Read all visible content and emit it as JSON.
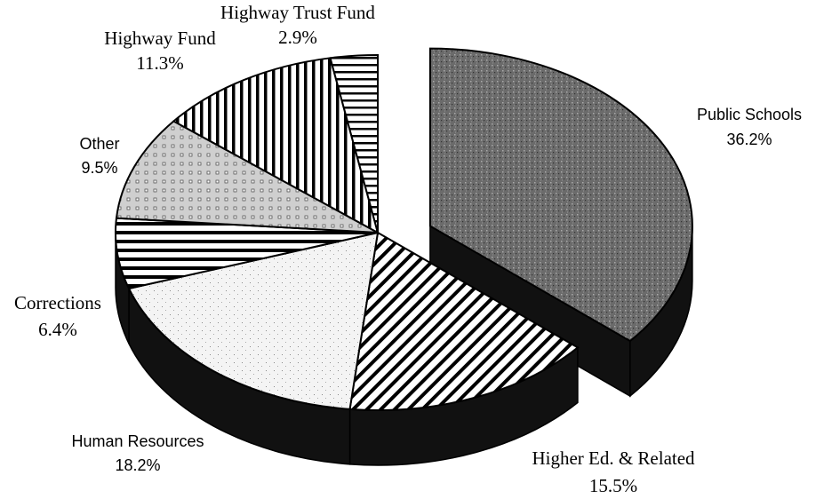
{
  "chart_data": {
    "type": "pie",
    "categories": [
      "Public Schools",
      "Higher Ed. & Related",
      "Human Resources",
      "Corrections",
      "Other",
      "Highway Fund",
      "Highway Trust Fund"
    ],
    "values": [
      36.2,
      15.5,
      18.2,
      6.4,
      9.5,
      11.3,
      2.9
    ],
    "value_labels": [
      "36.2%",
      "15.5%",
      "18.2%",
      "6.4%",
      "9.5%",
      "11.3%",
      "2.9%"
    ],
    "colors": [
      "#6b6b6b",
      "#ffffff",
      "#f4f4f4",
      "#ffffff",
      "#cfcfcf",
      "#ffffff",
      "#ffffff"
    ]
  }
}
